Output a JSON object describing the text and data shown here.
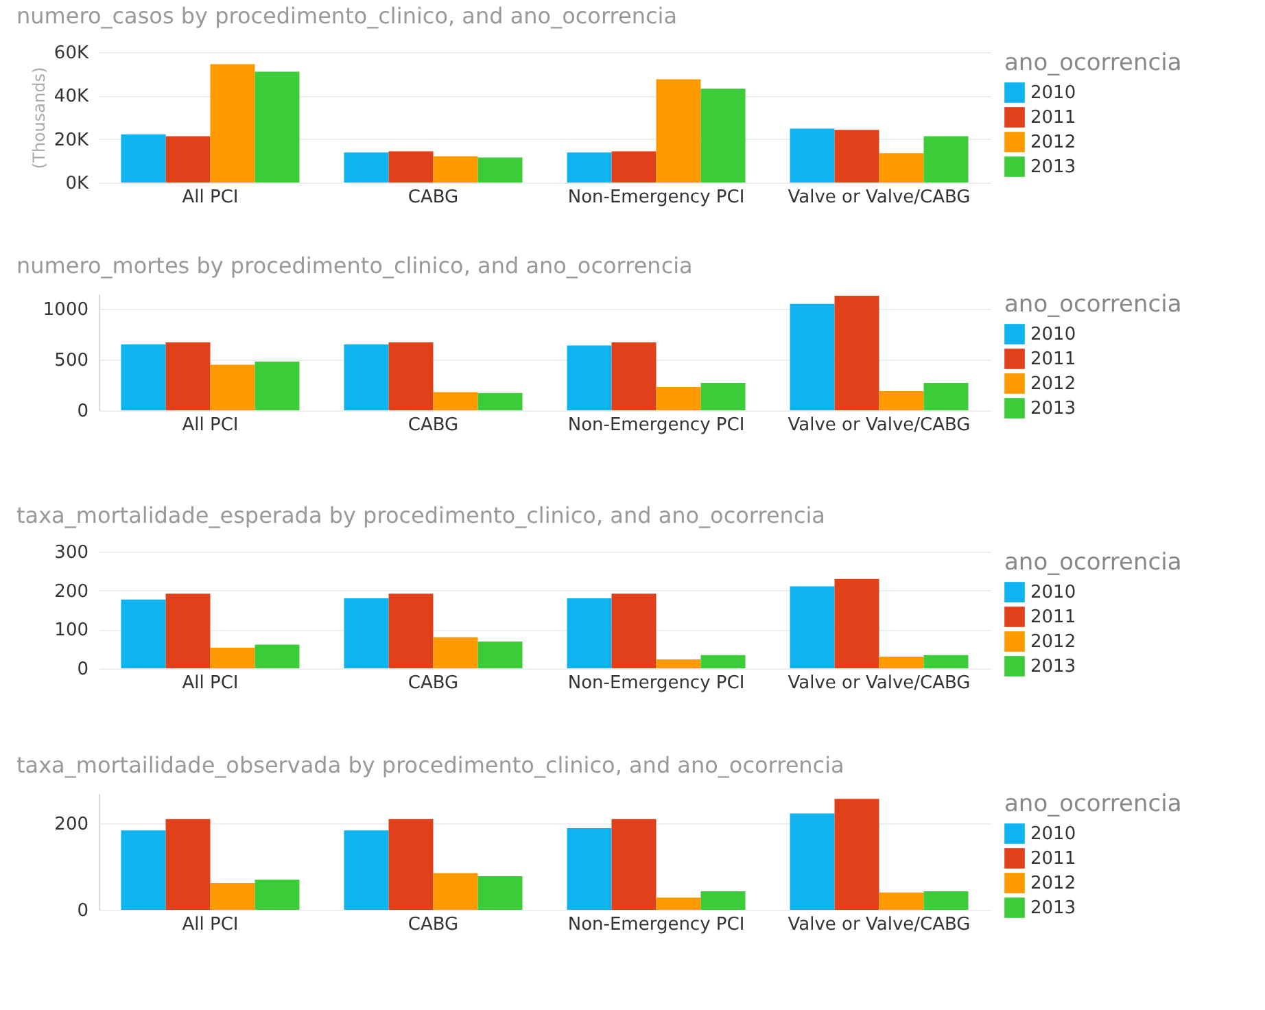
{
  "chart_data": [
    {
      "type": "bar",
      "title": "numero_casos by procedimento_clinico, and ano_ocorrencia",
      "ylabel": "(Thousands)",
      "legend_title": "ano_ocorrencia",
      "legend": "right",
      "grid": "y",
      "categories": [
        "All PCI",
        "CABG",
        "Non-Emergency PCI",
        "Valve or Valve/CABG"
      ],
      "ylim": [
        0,
        60000
      ],
      "yticks": [
        {
          "value": 0,
          "label": "0K"
        },
        {
          "value": 20000,
          "label": "20K"
        },
        {
          "value": 40000,
          "label": "40K"
        },
        {
          "value": 60000,
          "label": "60K"
        }
      ],
      "series": [
        {
          "name": "2010",
          "color": "#0fb3ef",
          "values": [
            22200,
            13800,
            13800,
            24800
          ]
        },
        {
          "name": "2011",
          "color": "#e0401a",
          "values": [
            21300,
            14400,
            14400,
            24200
          ]
        },
        {
          "name": "2012",
          "color": "#fd9a00",
          "values": [
            54500,
            12100,
            47500,
            13500
          ]
        },
        {
          "name": "2013",
          "color": "#3ccc3a",
          "values": [
            51000,
            11500,
            43200,
            21300
          ]
        }
      ]
    },
    {
      "type": "bar",
      "title": "numero_mortes by procedimento_clinico, and ano_ocorrencia",
      "legend_title": "ano_ocorrencia",
      "legend": "right",
      "grid": "y",
      "categories": [
        "All PCI",
        "CABG",
        "Non-Emergency PCI",
        "Valve or Valve/CABG"
      ],
      "ylim": [
        0,
        1150
      ],
      "yticks": [
        0,
        500,
        1000
      ],
      "series": [
        {
          "name": "2010",
          "color": "#0fb3ef",
          "values": [
            650,
            650,
            640,
            1050
          ]
        },
        {
          "name": "2011",
          "color": "#e0401a",
          "values": [
            670,
            670,
            670,
            1130
          ]
        },
        {
          "name": "2012",
          "color": "#fd9a00",
          "values": [
            450,
            180,
            230,
            190
          ]
        },
        {
          "name": "2013",
          "color": "#3ccc3a",
          "values": [
            480,
            170,
            270,
            270
          ]
        }
      ]
    },
    {
      "type": "bar",
      "title": "taxa_mortalidade_esperada by procedimento_clinico, and ano_ocorrencia",
      "legend_title": "ano_ocorrencia",
      "legend": "right",
      "grid": "y",
      "categories": [
        "All PCI",
        "CABG",
        "Non-Emergency PCI",
        "Valve or Valve/CABG"
      ],
      "ylim": [
        0,
        300
      ],
      "yticks": [
        0,
        100,
        200,
        300
      ],
      "series": [
        {
          "name": "2010",
          "color": "#0fb3ef",
          "values": [
            177,
            180,
            180,
            211
          ]
        },
        {
          "name": "2011",
          "color": "#e0401a",
          "values": [
            192,
            192,
            192,
            230
          ]
        },
        {
          "name": "2012",
          "color": "#fd9a00",
          "values": [
            53,
            80,
            23,
            30
          ]
        },
        {
          "name": "2013",
          "color": "#3ccc3a",
          "values": [
            61,
            69,
            34,
            34
          ]
        }
      ]
    },
    {
      "type": "bar",
      "title": "taxa_mortailidade_observada by procedimento_clinico, and ano_ocorrencia",
      "legend_title": "ano_ocorrencia",
      "legend": "right",
      "grid": "y",
      "categories": [
        "All PCI",
        "CABG",
        "Non-Emergency PCI",
        "Valve or Valve/CABG"
      ],
      "ylim": [
        0,
        270
      ],
      "yticks": [
        0,
        200
      ],
      "series": [
        {
          "name": "2010",
          "color": "#0fb3ef",
          "values": [
            184,
            184,
            189,
            223
          ]
        },
        {
          "name": "2011",
          "color": "#e0401a",
          "values": [
            210,
            210,
            210,
            257
          ]
        },
        {
          "name": "2012",
          "color": "#fd9a00",
          "values": [
            62,
            85,
            28,
            40
          ]
        },
        {
          "name": "2013",
          "color": "#3ccc3a",
          "values": [
            70,
            78,
            43,
            43
          ]
        }
      ]
    }
  ]
}
